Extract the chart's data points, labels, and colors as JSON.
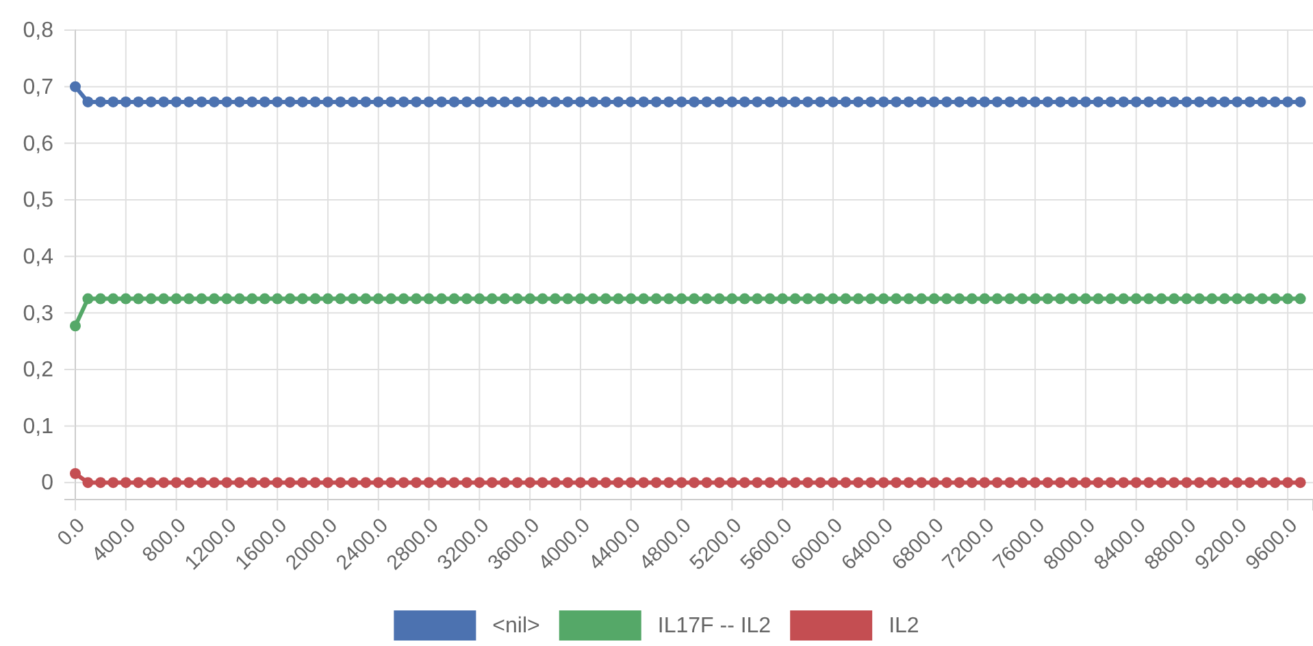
{
  "chart_data": {
    "type": "line",
    "marker": "circle",
    "grid": true,
    "legend": "bottom",
    "x": [
      0,
      100,
      200,
      300,
      400,
      500,
      600,
      700,
      800,
      900,
      1000,
      1100,
      1200,
      1300,
      1400,
      1500,
      1600,
      1700,
      1800,
      1900,
      2000,
      2100,
      2200,
      2300,
      2400,
      2500,
      2600,
      2700,
      2800,
      2900,
      3000,
      3100,
      3200,
      3300,
      3400,
      3500,
      3600,
      3700,
      3800,
      3900,
      4000,
      4100,
      4200,
      4300,
      4400,
      4500,
      4600,
      4700,
      4800,
      4900,
      5000,
      5100,
      5200,
      5300,
      5400,
      5500,
      5600,
      5700,
      5800,
      5900,
      6000,
      6100,
      6200,
      6300,
      6400,
      6500,
      6600,
      6700,
      6800,
      6900,
      7000,
      7100,
      7200,
      7300,
      7400,
      7500,
      7600,
      7700,
      7800,
      7900,
      8000,
      8100,
      8200,
      8300,
      8400,
      8500,
      8600,
      8700,
      8800,
      8900,
      9000,
      9100,
      9200,
      9300,
      9400,
      9500,
      9600,
      9700
    ],
    "xlim": [
      0,
      9800
    ],
    "xticks": [
      {
        "value": 0,
        "label": "0.0"
      },
      {
        "value": 400,
        "label": "400.0"
      },
      {
        "value": 800,
        "label": "800.0"
      },
      {
        "value": 1200,
        "label": "1200.0"
      },
      {
        "value": 1600,
        "label": "1600.0"
      },
      {
        "value": 2000,
        "label": "2000.0"
      },
      {
        "value": 2400,
        "label": "2400.0"
      },
      {
        "value": 2800,
        "label": "2800.0"
      },
      {
        "value": 3200,
        "label": "3200.0"
      },
      {
        "value": 3600,
        "label": "3600.0"
      },
      {
        "value": 4000,
        "label": "4000.0"
      },
      {
        "value": 4400,
        "label": "4400.0"
      },
      {
        "value": 4800,
        "label": "4800.0"
      },
      {
        "value": 5200,
        "label": "5200.0"
      },
      {
        "value": 5600,
        "label": "5600.0"
      },
      {
        "value": 6000,
        "label": "6000.0"
      },
      {
        "value": 6400,
        "label": "6400.0"
      },
      {
        "value": 6800,
        "label": "6800.0"
      },
      {
        "value": 7200,
        "label": "7200.0"
      },
      {
        "value": 7600,
        "label": "7600.0"
      },
      {
        "value": 8000,
        "label": "8000.0"
      },
      {
        "value": 8400,
        "label": "8400.0"
      },
      {
        "value": 8800,
        "label": "8800.0"
      },
      {
        "value": 9200,
        "label": "9200.0"
      },
      {
        "value": 9600,
        "label": "9600.0"
      }
    ],
    "ylim": [
      -0.03,
      0.8
    ],
    "yticks": [
      {
        "value": 0,
        "label": "0"
      },
      {
        "value": 0.1,
        "label": "0,1"
      },
      {
        "value": 0.2,
        "label": "0,2"
      },
      {
        "value": 0.3,
        "label": "0,3"
      },
      {
        "value": 0.4,
        "label": "0,4"
      },
      {
        "value": 0.5,
        "label": "0,5"
      },
      {
        "value": 0.6,
        "label": "0,6"
      },
      {
        "value": 0.7,
        "label": "0,7"
      },
      {
        "value": 0.8,
        "label": "0,8"
      }
    ],
    "series": [
      {
        "name": "<nil>",
        "color": "#4c72b0",
        "values": [
          0.7,
          0.673,
          0.673,
          0.673,
          0.673,
          0.673,
          0.673,
          0.673,
          0.673,
          0.673,
          0.673,
          0.673,
          0.673,
          0.673,
          0.673,
          0.673,
          0.673,
          0.673,
          0.673,
          0.673,
          0.673,
          0.673,
          0.673,
          0.673,
          0.673,
          0.673,
          0.673,
          0.673,
          0.673,
          0.673,
          0.673,
          0.673,
          0.673,
          0.673,
          0.673,
          0.673,
          0.673,
          0.673,
          0.673,
          0.673,
          0.673,
          0.673,
          0.673,
          0.673,
          0.673,
          0.673,
          0.673,
          0.673,
          0.673,
          0.673,
          0.673,
          0.673,
          0.673,
          0.673,
          0.673,
          0.673,
          0.673,
          0.673,
          0.673,
          0.673,
          0.673,
          0.673,
          0.673,
          0.673,
          0.673,
          0.673,
          0.673,
          0.673,
          0.673,
          0.673,
          0.673,
          0.673,
          0.673,
          0.673,
          0.673,
          0.673,
          0.673,
          0.673,
          0.673,
          0.673,
          0.673,
          0.673,
          0.673,
          0.673,
          0.673,
          0.673,
          0.673,
          0.673,
          0.673,
          0.673,
          0.673,
          0.673,
          0.673,
          0.673,
          0.673,
          0.673,
          0.673,
          0.673
        ]
      },
      {
        "name": "IL17F -- IL2",
        "color": "#55a868",
        "values": [
          0.277,
          0.325,
          0.325,
          0.325,
          0.325,
          0.325,
          0.325,
          0.325,
          0.325,
          0.325,
          0.325,
          0.325,
          0.325,
          0.325,
          0.325,
          0.325,
          0.325,
          0.325,
          0.325,
          0.325,
          0.325,
          0.325,
          0.325,
          0.325,
          0.325,
          0.325,
          0.325,
          0.325,
          0.325,
          0.325,
          0.325,
          0.325,
          0.325,
          0.325,
          0.325,
          0.325,
          0.325,
          0.325,
          0.325,
          0.325,
          0.325,
          0.325,
          0.325,
          0.325,
          0.325,
          0.325,
          0.325,
          0.325,
          0.325,
          0.325,
          0.325,
          0.325,
          0.325,
          0.325,
          0.325,
          0.325,
          0.325,
          0.325,
          0.325,
          0.325,
          0.325,
          0.325,
          0.325,
          0.325,
          0.325,
          0.325,
          0.325,
          0.325,
          0.325,
          0.325,
          0.325,
          0.325,
          0.325,
          0.325,
          0.325,
          0.325,
          0.325,
          0.325,
          0.325,
          0.325,
          0.325,
          0.325,
          0.325,
          0.325,
          0.325,
          0.325,
          0.325,
          0.325,
          0.325,
          0.325,
          0.325,
          0.325,
          0.325,
          0.325,
          0.325,
          0.325,
          0.325,
          0.325
        ]
      },
      {
        "name": "IL2",
        "color": "#c44e52",
        "values": [
          0.016,
          0,
          0,
          0,
          0,
          0,
          0,
          0,
          0,
          0,
          0,
          0,
          0,
          0,
          0,
          0,
          0,
          0,
          0,
          0,
          0,
          0,
          0,
          0,
          0,
          0,
          0,
          0,
          0,
          0,
          0,
          0,
          0,
          0,
          0,
          0,
          0,
          0,
          0,
          0,
          0,
          0,
          0,
          0,
          0,
          0,
          0,
          0,
          0,
          0,
          0,
          0,
          0,
          0,
          0,
          0,
          0,
          0,
          0,
          0,
          0,
          0,
          0,
          0,
          0,
          0,
          0,
          0,
          0,
          0,
          0,
          0,
          0,
          0,
          0,
          0,
          0,
          0,
          0,
          0,
          0,
          0,
          0,
          0,
          0,
          0,
          0,
          0,
          0,
          0,
          0,
          0,
          0,
          0,
          0,
          0,
          0,
          0
        ]
      }
    ]
  }
}
